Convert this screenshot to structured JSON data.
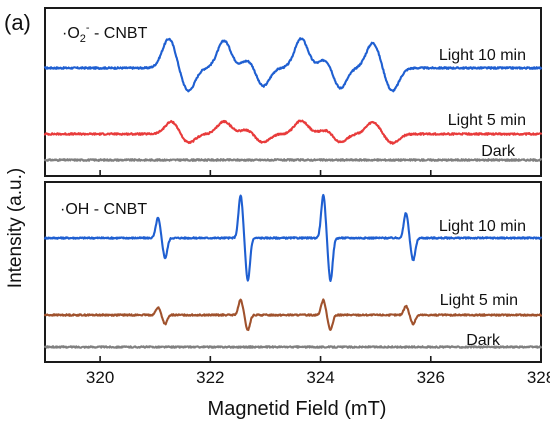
{
  "figure": {
    "panel_label": "(a)",
    "xlabel": "Magnetid Field (mT)",
    "ylabel": "Intensity (a.u.)"
  },
  "colors": {
    "light10": "#1f5fd1",
    "light5_top": "#e83b3b",
    "light5_bottom": "#a0522d",
    "dark": "#808080"
  },
  "chart_data": {
    "type": "line",
    "xlim": [
      319,
      328
    ],
    "xticks": [
      320,
      322,
      324,
      326,
      328
    ],
    "grid": false,
    "panels": [
      {
        "title": "·O₂⁻ - CNBT",
        "title_parts": [
          "·O",
          "2",
          "-",
          " - CNBT"
        ],
        "species": "superoxide",
        "ylim": [
          -1,
          3
        ],
        "series": [
          {
            "name": "Light 10 min",
            "color_key": "light10",
            "offset": 1.7,
            "gain": 1.0,
            "features": [
              [
                321.25,
                0.7
              ],
              [
                321.6,
                -0.55
              ],
              [
                322.25,
                0.65
              ],
              [
                322.7,
                0.2
              ],
              [
                322.95,
                -0.45
              ],
              [
                323.65,
                0.7
              ],
              [
                324.1,
                0.22
              ],
              [
                324.35,
                -0.5
              ],
              [
                324.95,
                0.6
              ],
              [
                325.3,
                -0.55
              ]
            ],
            "noise": 0.02
          },
          {
            "name": "Light 5 min",
            "color_key": "light5_top",
            "offset": 0.62,
            "gain": 1.0,
            "features": [
              [
                321.3,
                0.3
              ],
              [
                321.6,
                -0.22
              ],
              [
                322.25,
                0.3
              ],
              [
                322.65,
                0.1
              ],
              [
                322.95,
                -0.2
              ],
              [
                323.65,
                0.32
              ],
              [
                324.1,
                0.1
              ],
              [
                324.35,
                -0.2
              ],
              [
                324.95,
                0.28
              ],
              [
                325.3,
                -0.22
              ]
            ],
            "noise": 0.02
          },
          {
            "name": "Dark",
            "color_key": "dark",
            "offset": 0.0,
            "gain": 1.0,
            "features": [],
            "noise": 0.02
          }
        ]
      },
      {
        "title": "·OH - CNBT",
        "title_parts": [
          "·OH - CNBT"
        ],
        "species": "hydroxyl",
        "ylim": [
          -1,
          3
        ],
        "series": [
          {
            "name": "Light 10 min",
            "color_key": "light10",
            "offset": 2.0,
            "gain": 1.0,
            "features": [
              [
                321.05,
                0.4
              ],
              [
                321.18,
                -0.4
              ],
              [
                322.55,
                0.85
              ],
              [
                322.68,
                -0.85
              ],
              [
                324.05,
                0.85
              ],
              [
                324.18,
                -0.85
              ],
              [
                325.55,
                0.5
              ],
              [
                325.68,
                -0.45
              ]
            ],
            "noise": 0.015
          },
          {
            "name": "Light 5 min",
            "color_key": "light5_bottom",
            "offset": 0.65,
            "gain": 1.0,
            "features": [
              [
                321.05,
                0.15
              ],
              [
                321.18,
                -0.18
              ],
              [
                322.55,
                0.3
              ],
              [
                322.68,
                -0.3
              ],
              [
                324.05,
                0.3
              ],
              [
                324.18,
                -0.3
              ],
              [
                325.55,
                0.18
              ],
              [
                325.68,
                -0.18
              ]
            ],
            "noise": 0.015
          },
          {
            "name": "Dark",
            "color_key": "dark",
            "offset": 0.0,
            "gain": 1.0,
            "features": [],
            "noise": 0.015
          }
        ]
      }
    ]
  }
}
